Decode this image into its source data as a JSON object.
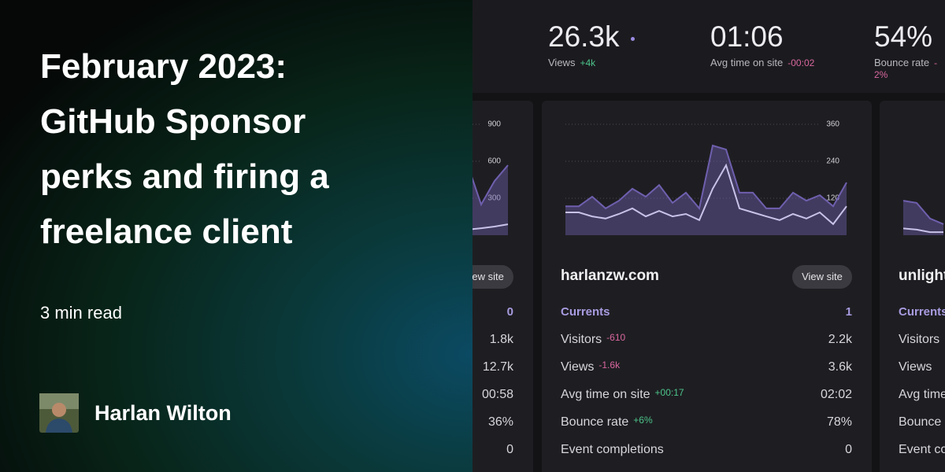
{
  "post": {
    "title": "February 2023: GitHub Sponsor perks and firing a freelance client",
    "read_time": "3 min read",
    "author": "Harlan Wilton"
  },
  "summary": [
    {
      "value": "26.3k",
      "label": "Views",
      "change": "+4k"
    },
    {
      "value": "01:06",
      "label": "Avg time on site",
      "change": "-00:02"
    },
    {
      "value": "54%",
      "label": "Bounce rate",
      "change": "-2%"
    }
  ],
  "cards": [
    {
      "button": "View site",
      "rows": [
        {
          "value": "0"
        },
        {
          "value": "1.8k"
        },
        {
          "value": "12.7k"
        },
        {
          "value": "00:58"
        },
        {
          "value": "36%"
        },
        {
          "value": "0"
        }
      ]
    },
    {
      "site": "harlanzw.com",
      "button": "View site",
      "rows": [
        {
          "label": "Currents",
          "value": "1"
        },
        {
          "label": "Visitors",
          "change": "-610",
          "value": "2.2k"
        },
        {
          "label": "Views",
          "change": "-1.6k",
          "value": "3.6k"
        },
        {
          "label": "Avg time on site",
          "change": "+00:17",
          "value": "02:02"
        },
        {
          "label": "Bounce rate",
          "change": "+6%",
          "value": "78%"
        },
        {
          "label": "Event completions",
          "value": "0"
        }
      ]
    },
    {
      "site": "unlight",
      "rows": [
        {
          "label": "Currents"
        },
        {
          "label": "Visitors"
        },
        {
          "label": "Views"
        },
        {
          "label": "Avg time on site"
        },
        {
          "label": "Bounce rate"
        },
        {
          "label": "Event completions"
        }
      ]
    }
  ],
  "chart_data": [
    {
      "type": "line",
      "ylim": [
        0,
        900
      ],
      "yticks": [
        300,
        600,
        900
      ],
      "grid": true,
      "series": [
        {
          "color": "#6f5fae",
          "values": [
            568,
            249,
            440,
            568
          ]
        },
        {
          "color": "#c9c2e8",
          "values": [
            45,
            57,
            70,
            89
          ]
        }
      ]
    },
    {
      "type": "line",
      "ylim": [
        0,
        360
      ],
      "yticks": [
        120,
        240,
        360
      ],
      "grid": true,
      "series": [
        {
          "color": "#6f5fae",
          "values": [
            94,
            94,
            125,
            87,
            112,
            151,
            125,
            163,
            105,
            138,
            87,
            291,
            278,
            138,
            138,
            87,
            87,
            138,
            112,
            130,
            94,
            171
          ]
        },
        {
          "color": "#c9c2e8",
          "values": [
            74,
            74,
            61,
            54,
            69,
            87,
            61,
            79,
            61,
            69,
            49,
            151,
            227,
            87,
            74,
            61,
            49,
            69,
            54,
            74,
            36,
            94
          ]
        }
      ]
    },
    {
      "type": "line",
      "ylim": [
        0,
        360
      ],
      "grid": true,
      "series": [
        {
          "color": "#6f5fae",
          "values": [
            112,
            105,
            54,
            36
          ]
        },
        {
          "color": "#c9c2e8",
          "values": [
            22,
            18,
            10,
            10
          ]
        }
      ]
    }
  ]
}
